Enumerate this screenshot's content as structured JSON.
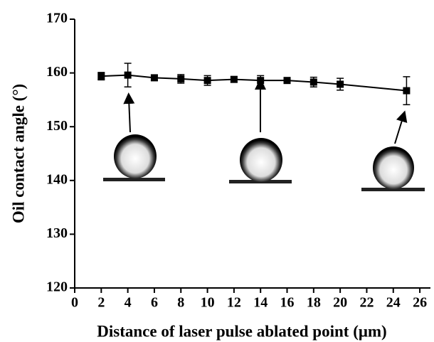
{
  "chart_data": {
    "type": "line",
    "x_label": "Distance of laser pulse ablated point (μm)",
    "y_label": "Oil contact angle (°)",
    "x": [
      2,
      4,
      6,
      8,
      10,
      12,
      14,
      16,
      18,
      20,
      25
    ],
    "series": [
      {
        "color": "#000000",
        "values": [
          159.4,
          159.6,
          159.1,
          158.9,
          158.6,
          158.8,
          158.6,
          158.6,
          158.3,
          157.9,
          156.7
        ],
        "errors": [
          0.7,
          2.2,
          0.5,
          0.8,
          0.9,
          0.5,
          0.9,
          0.3,
          0.9,
          1.1,
          2.6
        ]
      }
    ],
    "xlim": [
      0,
      26.8
    ],
    "xticks": [
      0,
      2,
      4,
      6,
      8,
      10,
      12,
      14,
      16,
      18,
      20,
      22,
      24,
      26
    ],
    "ylim": [
      120,
      170
    ],
    "yticks": [
      120,
      130,
      140,
      150,
      160,
      170
    ]
  }
}
